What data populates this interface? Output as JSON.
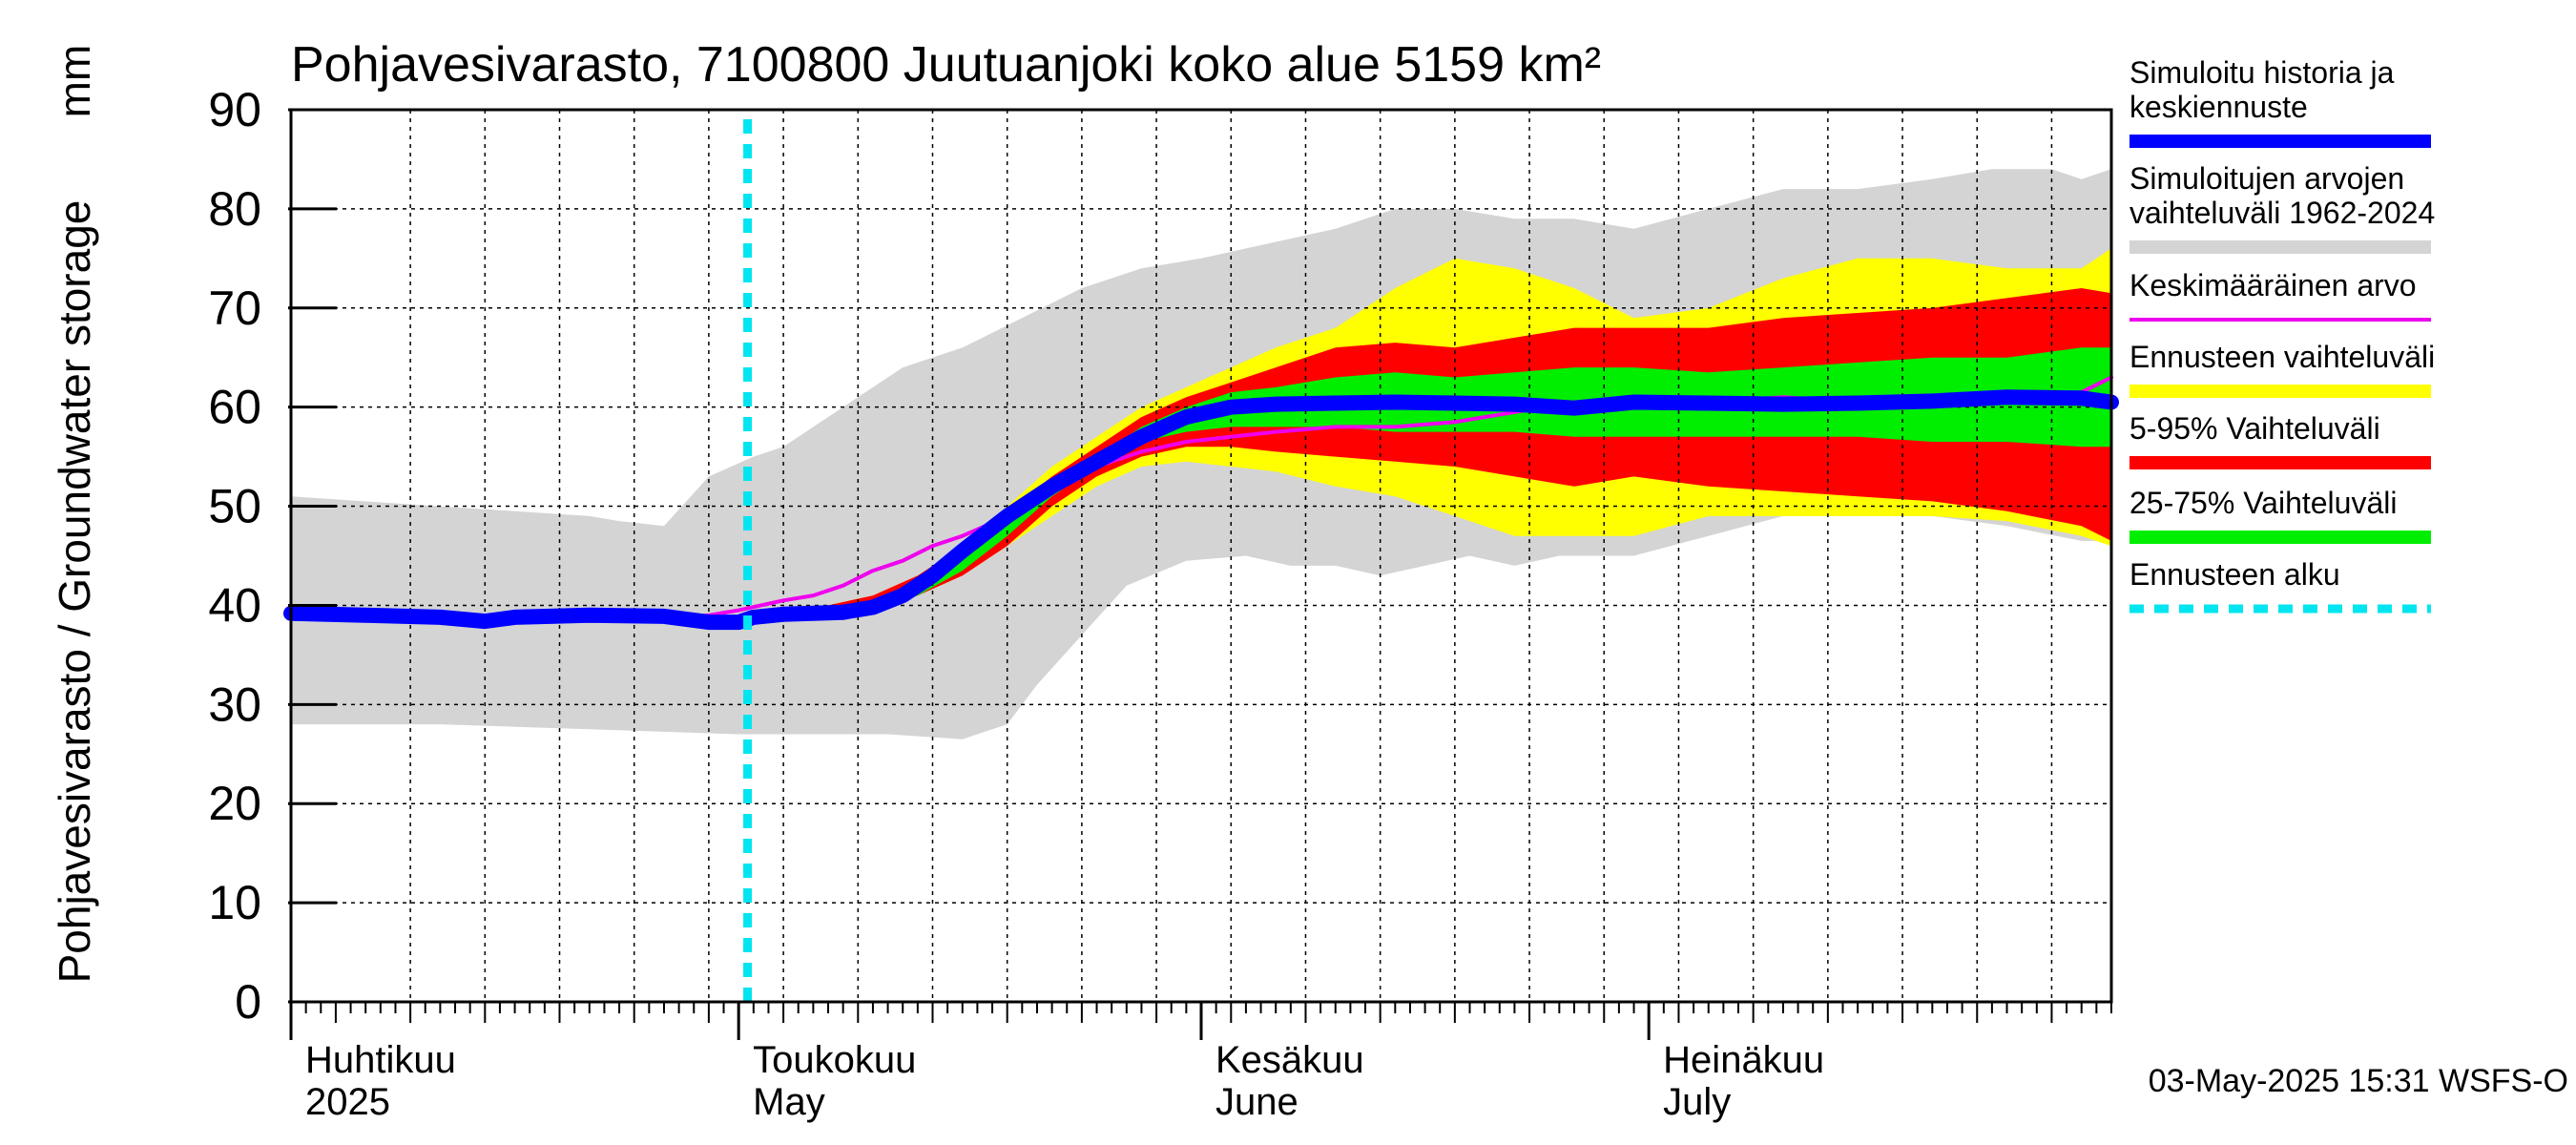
{
  "chart_data": {
    "type": "area",
    "title": "Pohjavesivarasto, 7100800 Juutuanjoki koko alue 5159 km²",
    "ylabel": "Pohjavesivarasto / Groundwater storage",
    "yunit": "mm",
    "ylim": [
      0,
      90
    ],
    "yticks": [
      "0",
      "10",
      "20",
      "30",
      "40",
      "50",
      "60",
      "70",
      "80",
      "90"
    ],
    "xlim_day": [
      0,
      122
    ],
    "x_unit": "days since 2025-04-01",
    "month_labels": [
      {
        "fi": "Huhtikuu",
        "en": "2025",
        "day": 0
      },
      {
        "fi": "Toukokuu",
        "en": "May",
        "day": 30
      },
      {
        "fi": "Kesäkuu",
        "en": "June",
        "day": 61
      },
      {
        "fi": "Heinäkuu",
        "en": "July",
        "day": 91
      }
    ],
    "forecast_start_day": 30.6,
    "timestamp": "03-May-2025 15:31 WSFS-O",
    "colors": {
      "history_range": "#d4d4d4",
      "forecast_range": "#ffff00",
      "p5_95": "#ff0000",
      "p25_75": "#00ee00",
      "median": "#0000ff",
      "mean": "#ee00ee",
      "forecast_start": "#00e5f0"
    },
    "legend": [
      {
        "label": "Simuloitu historia ja keskiennuste",
        "lines": [
          "Simuloitu historia ja",
          "keskiennuste"
        ],
        "color": "#0000ff",
        "style": "thick"
      },
      {
        "label": "Simuloitujen arvojen vaihteluväli 1962-2024",
        "lines": [
          "Simuloitujen arvojen",
          "vaihteluväli 1962-2024"
        ],
        "color": "#d4d4d4",
        "style": "thick"
      },
      {
        "label": "Keskimääräinen arvo",
        "lines": [
          "Keskimääräinen arvo"
        ],
        "color": "#ee00ee",
        "style": "thin"
      },
      {
        "label": "Ennusteen vaihteluväli",
        "lines": [
          "Ennusteen vaihteluväli"
        ],
        "color": "#ffff00",
        "style": "thick"
      },
      {
        "label": "5-95% Vaihteluväli",
        "lines": [
          "5-95% Vaihteluväli"
        ],
        "color": "#ff0000",
        "style": "thick"
      },
      {
        "label": "25-75% Vaihteluväli",
        "lines": [
          "25-75% Vaihteluväli"
        ],
        "color": "#00ee00",
        "style": "thick"
      },
      {
        "label": "Ennusteen alku",
        "lines": [
          "Ennusteen alku"
        ],
        "color": "#00e5f0",
        "style": "dotted"
      }
    ],
    "series": [
      {
        "name": "Simuloitujen arvojen vaihteluväli 1962-2024 (max)",
        "x": [
          0,
          10,
          20,
          22,
          25,
          28,
          31,
          33,
          35,
          38,
          41,
          45,
          49,
          53,
          57,
          61,
          64,
          67,
          70,
          74,
          78,
          82,
          86,
          90,
          95,
          100,
          105,
          110,
          114,
          118,
          120,
          122
        ],
        "y": [
          51,
          50,
          49,
          48.5,
          48,
          53,
          55,
          56,
          58,
          61,
          64,
          66,
          69,
          72,
          74,
          75,
          76,
          77,
          78,
          80,
          80,
          79,
          79,
          78,
          80,
          82,
          82,
          83,
          84,
          84,
          83,
          84
        ]
      },
      {
        "name": "Simuloitujen arvojen vaihteluväli 1962-2024 (min)",
        "x": [
          0,
          10,
          20,
          30,
          35,
          40,
          45,
          48,
          50,
          53,
          56,
          60,
          64,
          67,
          70,
          73,
          76,
          79,
          82,
          85,
          90,
          95,
          100,
          105,
          110,
          115,
          120,
          122
        ],
        "y": [
          28,
          28,
          27.5,
          27,
          27,
          27,
          26.5,
          28,
          32,
          37,
          42,
          44.5,
          45,
          44,
          44,
          43,
          44,
          45,
          44,
          45,
          45,
          47,
          49,
          49.5,
          49,
          48,
          46.5,
          46.5
        ]
      },
      {
        "name": "Ennusteen vaihteluväli (max)",
        "x": [
          30.6,
          33,
          36,
          39,
          42,
          45,
          48,
          51,
          54,
          57,
          60,
          63,
          66,
          70,
          74,
          78,
          82,
          86,
          90,
          95,
          100,
          105,
          110,
          115,
          120,
          122
        ],
        "y": [
          39,
          39.5,
          40,
          41,
          43,
          46,
          50,
          54,
          57,
          60,
          62,
          64,
          66,
          68,
          72,
          75,
          74,
          72,
          69,
          70,
          73,
          75,
          75,
          74,
          74,
          76
        ]
      },
      {
        "name": "Ennusteen vaihteluväli (min)",
        "x": [
          30.6,
          33,
          36,
          39,
          42,
          45,
          48,
          51,
          54,
          57,
          60,
          63,
          66,
          70,
          74,
          78,
          82,
          86,
          90,
          95,
          100,
          105,
          110,
          115,
          120,
          122
        ],
        "y": [
          38.5,
          38.5,
          39,
          39.5,
          41,
          43,
          46,
          49,
          52,
          54,
          54.5,
          54,
          53.5,
          52,
          51,
          49,
          47,
          47,
          47,
          49,
          49,
          49,
          49,
          48.5,
          47,
          46
        ]
      },
      {
        "name": "5-95% Vaihteluväli (max)",
        "x": [
          30.6,
          33,
          36,
          39,
          42,
          45,
          48,
          51,
          54,
          57,
          60,
          63,
          66,
          70,
          74,
          78,
          82,
          86,
          90,
          95,
          100,
          105,
          110,
          115,
          120,
          122
        ],
        "y": [
          39,
          39.5,
          40,
          41,
          43,
          46,
          49.5,
          53,
          56,
          59,
          61,
          62.5,
          64,
          66,
          66.5,
          66,
          67,
          68,
          68,
          68,
          69,
          69.5,
          70,
          71,
          72,
          71.5
        ]
      },
      {
        "name": "5-95% Vaihteluväli (min)",
        "x": [
          30.6,
          33,
          36,
          39,
          42,
          45,
          48,
          51,
          54,
          57,
          60,
          63,
          66,
          70,
          74,
          78,
          82,
          86,
          90,
          95,
          100,
          105,
          110,
          115,
          120,
          122
        ],
        "y": [
          38.5,
          38.8,
          39,
          39.5,
          41,
          43,
          46,
          50,
          53,
          55,
          56,
          56,
          55.5,
          55,
          54.5,
          54,
          53,
          52,
          53,
          52,
          51.5,
          51,
          50.5,
          49.5,
          48,
          46.5
        ]
      },
      {
        "name": "25-75% Vaihteluväli (max)",
        "x": [
          30.6,
          33,
          36,
          39,
          42,
          45,
          48,
          51,
          54,
          57,
          60,
          63,
          66,
          70,
          74,
          78,
          82,
          86,
          90,
          95,
          100,
          105,
          110,
          115,
          120,
          122
        ],
        "y": [
          39,
          39.3,
          39.8,
          40.5,
          42.5,
          45.5,
          49,
          52,
          55,
          58,
          60,
          61.5,
          62,
          63,
          63.5,
          63,
          63.5,
          64,
          64,
          63.5,
          64,
          64.5,
          65,
          65,
          66,
          66
        ]
      },
      {
        "name": "25-75% Vaihteluväli (min)",
        "x": [
          30.6,
          33,
          36,
          39,
          42,
          45,
          48,
          51,
          54,
          57,
          60,
          63,
          66,
          70,
          74,
          78,
          82,
          86,
          90,
          95,
          100,
          105,
          110,
          115,
          120,
          122
        ],
        "y": [
          38.7,
          38.9,
          39.2,
          39.6,
          41,
          43.5,
          47,
          51,
          54,
          56.5,
          57.5,
          58,
          58,
          58,
          57.5,
          57.5,
          57.5,
          57,
          57,
          57,
          57,
          57,
          56.5,
          56.5,
          56,
          56
        ]
      },
      {
        "name": "Keskimääräinen arvo",
        "x": [
          0,
          5,
          10,
          15,
          20,
          25,
          28,
          30,
          33,
          35,
          37,
          39,
          41,
          43,
          45,
          48,
          51,
          54,
          57,
          60,
          63,
          66,
          70,
          74,
          78,
          82,
          86,
          90,
          95,
          100,
          105,
          110,
          115,
          118,
          120,
          122
        ],
        "y": [
          38.8,
          38.5,
          38.6,
          38.5,
          38.5,
          38.5,
          39,
          39.5,
          40.5,
          41,
          42,
          43.5,
          44.5,
          46,
          47,
          49,
          52,
          54,
          55.5,
          56.5,
          57,
          57.5,
          58,
          58,
          58.5,
          59.5,
          60.5,
          60.5,
          60.5,
          61,
          60.5,
          61,
          61,
          60.5,
          61.5,
          63
        ]
      },
      {
        "name": "Simuloitu historia ja keskiennuste",
        "x": [
          0,
          5,
          10,
          13,
          15,
          20,
          25,
          28,
          30,
          31,
          33,
          35,
          37,
          39,
          41,
          43,
          45,
          48,
          51,
          54,
          57,
          60,
          63,
          66,
          70,
          74,
          78,
          82,
          86,
          90,
          95,
          100,
          105,
          110,
          115,
          120,
          122
        ],
        "y": [
          39.2,
          39,
          38.8,
          38.4,
          38.8,
          39,
          38.9,
          38.3,
          38.3,
          38.8,
          39.1,
          39.2,
          39.3,
          39.8,
          41,
          43,
          45.5,
          49,
          52,
          54.5,
          57,
          59,
          60,
          60.3,
          60.4,
          60.5,
          60.4,
          60.3,
          59.9,
          60.5,
          60.4,
          60.3,
          60.4,
          60.6,
          61,
          60.9,
          60.5
        ]
      }
    ]
  }
}
